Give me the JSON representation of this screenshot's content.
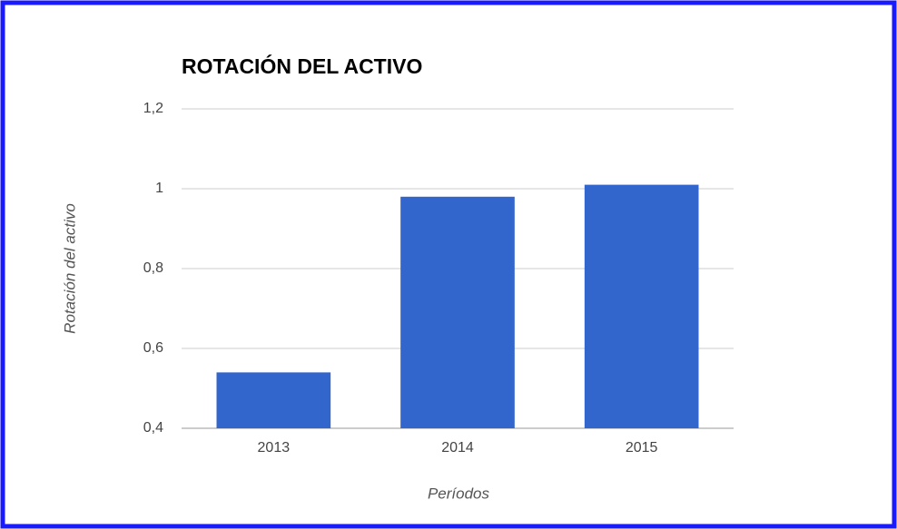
{
  "chart_data": {
    "type": "bar",
    "title": "ROTACIÓN DEL ACTIVO",
    "x_label": "Períodos",
    "y_label": "Rotación del activo",
    "categories": [
      "2013",
      "2014",
      "2015"
    ],
    "values": [
      0.54,
      0.98,
      1.01
    ],
    "color": "#3366cc",
    "ylim": [
      0.4,
      1.2
    ],
    "yticks": [
      {
        "value": 0.4,
        "label": "0,4"
      },
      {
        "value": 0.6,
        "label": "0,6"
      },
      {
        "value": 0.8,
        "label": "0,8"
      },
      1,
      {
        "value": 1.2,
        "label": "1,2"
      }
    ],
    "grid": true
  }
}
